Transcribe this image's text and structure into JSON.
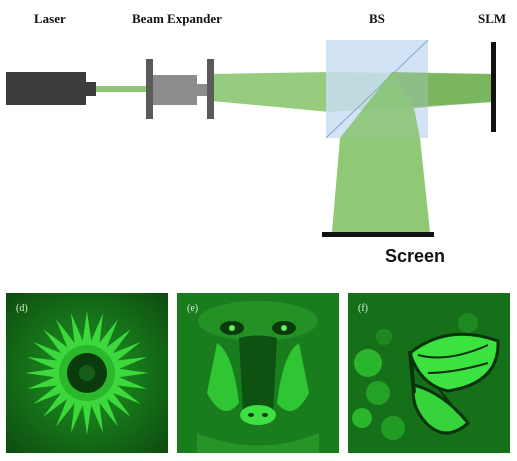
{
  "labels": {
    "laser": "Laser",
    "beam_expander": "Beam Expander",
    "bs": "BS",
    "slm": "SLM",
    "screen": "Screen"
  },
  "panels": [
    {
      "letter": "(d)",
      "subject": "flower"
    },
    {
      "letter": "(e)",
      "subject": "mandrill"
    },
    {
      "letter": "(f)",
      "subject": "butterfly"
    }
  ],
  "colors": {
    "beam": "#7cbf5e",
    "bs_cube": "#c9def2",
    "laser_body": "#3c3c3c",
    "hologram_green": "#22c02a"
  }
}
